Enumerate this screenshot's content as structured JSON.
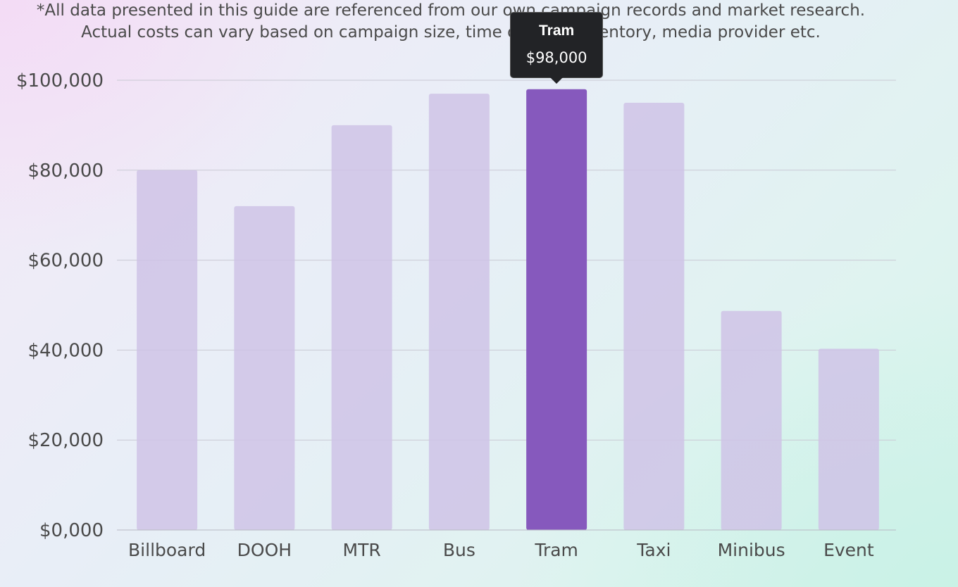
{
  "disclaimer": {
    "line1": "*All data presented in this guide are referenced from our own campaign records and market research.",
    "line2": "Actual costs can vary based on campaign size, time of year, inventory, media provider etc."
  },
  "tooltip": {
    "title": "Tram",
    "value": "$98,000"
  },
  "colors": {
    "bar": "#cfc3e6",
    "bar_highlight": "#8659bd",
    "gridline": "#c9c9d4",
    "axis": "#b8b8c4",
    "tooltip_bg": "#222326"
  },
  "chart_data": {
    "type": "bar",
    "categories": [
      "Billboard",
      "DOOH",
      "MTR",
      "Bus",
      "Tram",
      "Taxi",
      "Minibus",
      "Event"
    ],
    "values": [
      80000,
      72000,
      90000,
      97000,
      98000,
      95000,
      48700,
      40300
    ],
    "highlighted_category": "Tram",
    "ylim": [
      0,
      100000
    ],
    "y_ticks": [
      0,
      20000,
      40000,
      60000,
      80000,
      100000
    ],
    "y_tick_labels": [
      "$0,000",
      "$20,000",
      "$40,000",
      "$60,000",
      "$80,000",
      "$100,000"
    ],
    "grid": true,
    "title": "",
    "xlabel": "",
    "ylabel": ""
  }
}
